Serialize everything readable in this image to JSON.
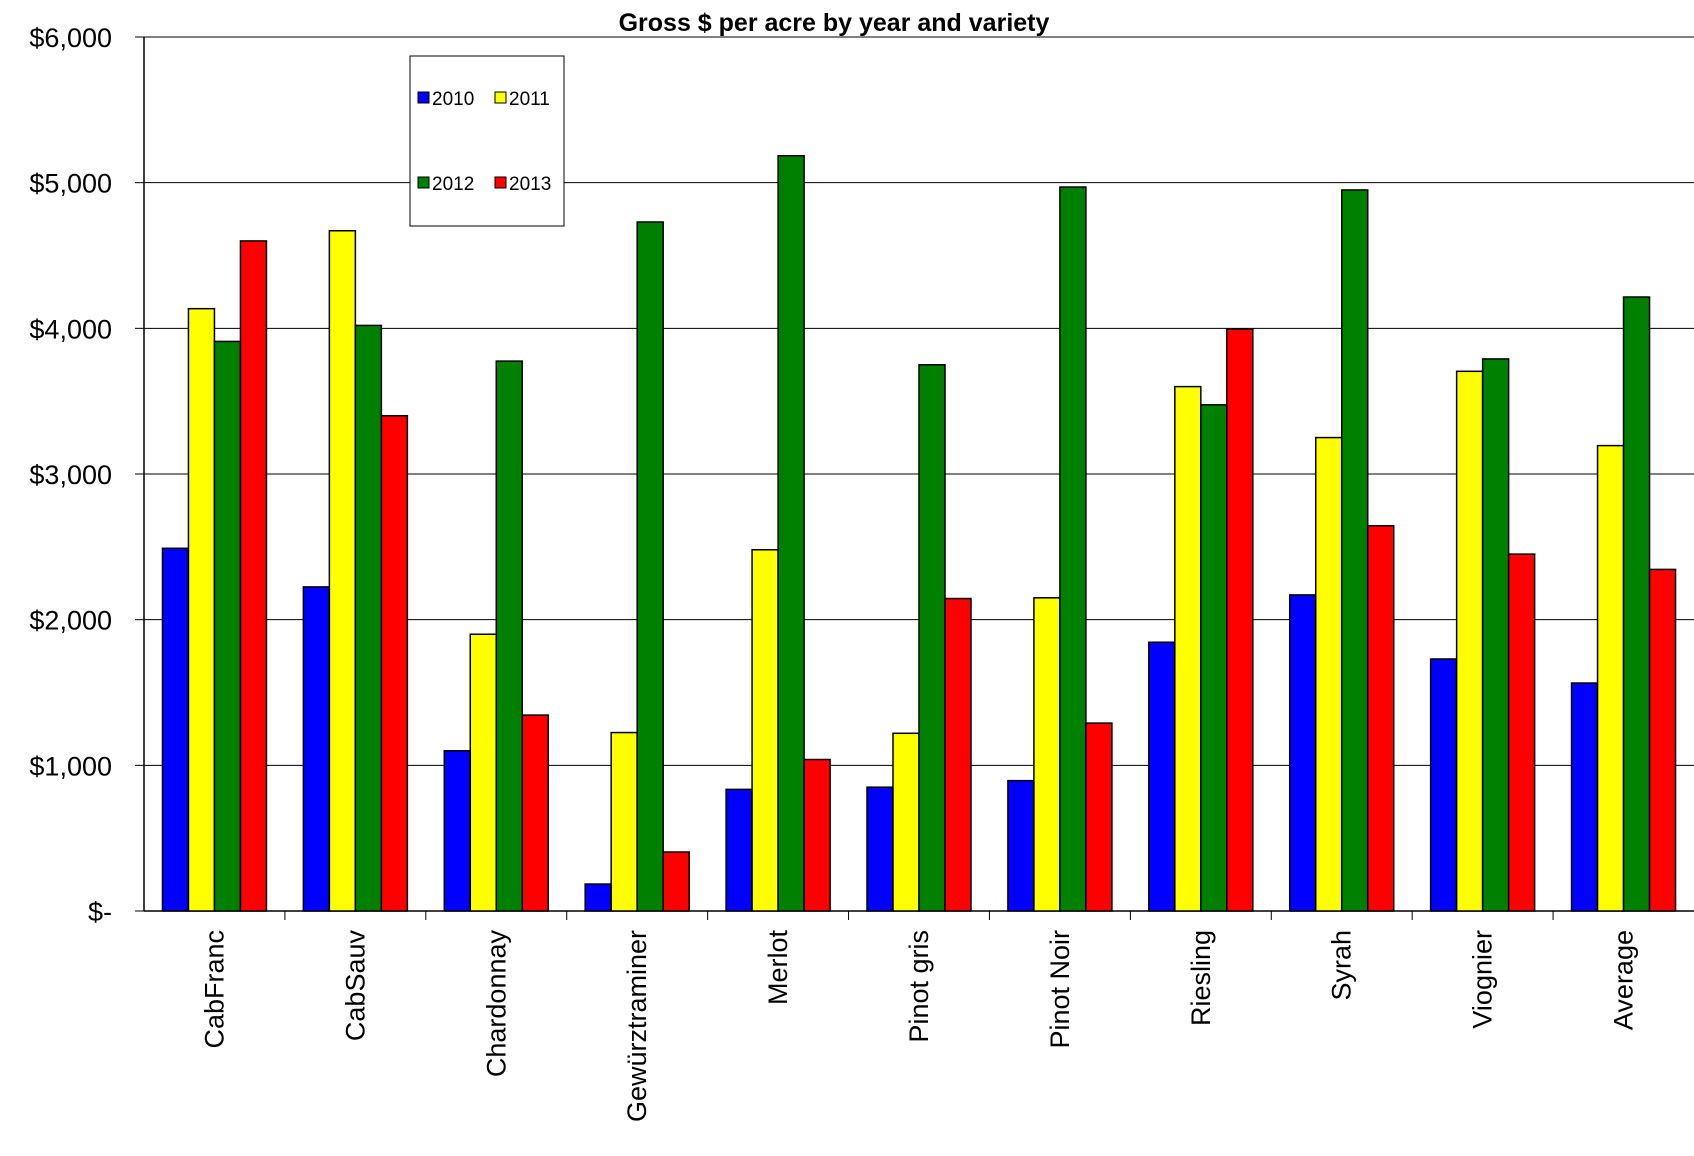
{
  "chart_data": {
    "type": "bar",
    "title": "Gross $ per acre by year and variety",
    "xlabel": "",
    "ylabel": "",
    "ylim": [
      0,
      6000
    ],
    "yticks": [
      0,
      1000,
      2000,
      3000,
      4000,
      5000,
      6000
    ],
    "ytick_labels": [
      "$-",
      "$1,000",
      "$2,000",
      "$3,000",
      "$4,000",
      "$5,000",
      "$6,000"
    ],
    "grid": true,
    "legend_position": "top-left",
    "categories": [
      "CabFranc",
      "CabSauv",
      "Chardonnay",
      "Gewürztraminer",
      "Merlot",
      "Pinot gris",
      "Pinot Noir",
      "Riesling",
      "Syrah",
      "Viognier",
      "Average"
    ],
    "series": [
      {
        "name": "2010",
        "color": "#0000ff",
        "values": [
          2490,
          2225,
          1100,
          185,
          835,
          850,
          895,
          1845,
          2170,
          1730,
          1565
        ]
      },
      {
        "name": "2011",
        "color": "#ffff00",
        "values": [
          4135,
          4670,
          1900,
          1225,
          2480,
          1220,
          2150,
          3600,
          3250,
          3705,
          3195
        ]
      },
      {
        "name": "2012",
        "color": "#008000",
        "values": [
          3910,
          4020,
          3775,
          4730,
          5185,
          3750,
          4970,
          3475,
          4950,
          3790,
          4215
        ]
      },
      {
        "name": "2013",
        "color": "#ff0000",
        "values": [
          4600,
          3400,
          1345,
          405,
          1040,
          2145,
          1290,
          3995,
          2645,
          2450,
          2345
        ]
      }
    ]
  }
}
